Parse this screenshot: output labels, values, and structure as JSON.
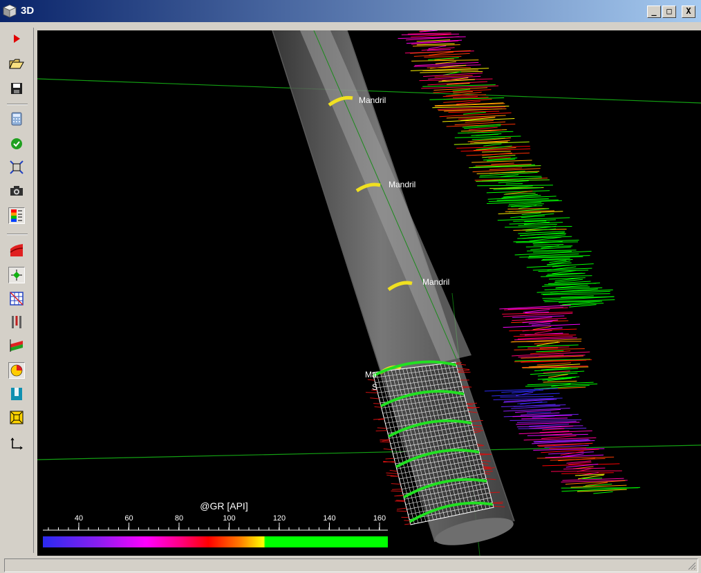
{
  "window": {
    "title": "3D",
    "minimize_label": "_",
    "maximize_label": "□",
    "close_label": "X"
  },
  "toolbar": {
    "buttons": [
      {
        "name": "play-arrow-icon"
      },
      {
        "name": "open-folder-icon"
      },
      {
        "name": "save-disk-icon"
      },
      {
        "name": "calculator-icon"
      },
      {
        "name": "check-circle-icon"
      },
      {
        "name": "fit-view-icon"
      },
      {
        "name": "camera-icon"
      },
      {
        "name": "color-legend-icon"
      },
      {
        "name": "surface-icon"
      },
      {
        "name": "marker-icon"
      },
      {
        "name": "grid-icon"
      },
      {
        "name": "tubing-icon"
      },
      {
        "name": "log-track-icon"
      },
      {
        "name": "pie-chart-icon"
      },
      {
        "name": "well-icon"
      },
      {
        "name": "cube-icon"
      },
      {
        "name": "axes-icon"
      }
    ]
  },
  "viewport": {
    "annotations": [
      "Mandril",
      "Mandril",
      "Mandril",
      "Ma",
      "S"
    ]
  },
  "colorbar": {
    "title": "@GR [API]",
    "ticks": [
      "40",
      "60",
      "80",
      "100",
      "120",
      "140",
      "160"
    ],
    "colors": [
      "#2a2af0",
      "#8a1ef0",
      "#ff00ff",
      "#ff0080",
      "#ff0000",
      "#ff7a00",
      "#ffff00",
      "#00ff00"
    ]
  },
  "statusbar": {
    "text": ""
  }
}
